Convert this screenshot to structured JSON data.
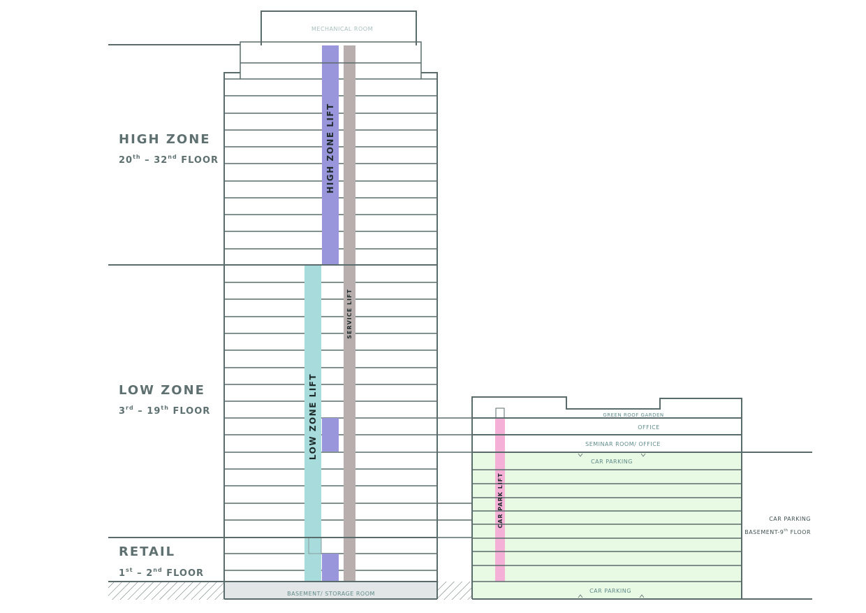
{
  "zones": {
    "high": {
      "title": "HIGH ZONE",
      "floor_from": "20",
      "floor_from_sup": "th",
      "dash": "–",
      "floor_to": "32",
      "floor_to_sup": "nd",
      "suffix": "FLOOR"
    },
    "low": {
      "title": "LOW ZONE",
      "floor_from": "3",
      "floor_from_sup": "rd",
      "dash": "–",
      "floor_to": "19",
      "floor_to_sup": "th",
      "suffix": "FLOOR"
    },
    "retail": {
      "title": "RETAIL",
      "floor_from": "1",
      "floor_from_sup": "st",
      "dash": "–",
      "floor_to": "2",
      "floor_to_sup": "nd",
      "suffix": "FLOOR"
    }
  },
  "rooms": {
    "mechanical": "MECHANICAL ROOM",
    "basement": "BASEMENT/ STORAGE ROOM",
    "green_roof": "GREEN ROOF GARDEN",
    "office": "OFFICE",
    "seminar": "SEMINAR ROOM/ OFFICE",
    "car_parking_top": "CAR PARKING",
    "car_parking_bottom": "CAR PARKING"
  },
  "lifts": {
    "high_zone": "HIGH ZONE LIFT",
    "low_zone": "LOW ZONE LIFT",
    "service": "SERVICE LIFT",
    "car_park": "CAR PARK LIFT"
  },
  "side": {
    "car_parking": "CAR PARKING",
    "basement_prefix": "BASEMENT-9",
    "basement_sup": "th",
    "basement_suffix": " FLOOR"
  },
  "colors": {
    "line": "#5a6b6b",
    "high_lift": "#9a96dc",
    "low_lift": "#a8dcdc",
    "service_lift": "#b8aeae",
    "car_park_lift": "#f4b0d6",
    "car_park_fill": "#e8f9e4",
    "basement_fill": "#e2e6e6"
  }
}
